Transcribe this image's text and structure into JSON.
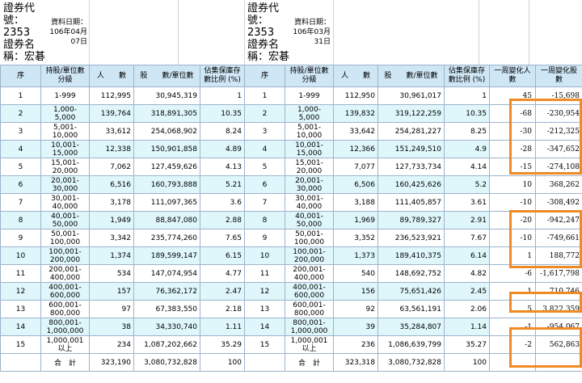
{
  "left_header": {
    "code_label_1": "證券代",
    "code_label_2": "號：",
    "code_value": "2353",
    "name_label_1": "證券名",
    "name_label_2": "稱：宏碁",
    "date_label": "資料日期：",
    "date_line1": "106年04月",
    "date_line2": "07日"
  },
  "right_header": {
    "code_label_1": "證券代",
    "code_label_2": "號：",
    "code_value": "2353",
    "name_label_1": "證券名",
    "name_label_2": "稱：宏碁",
    "date_label": "資料日期：",
    "date_line1": "106年03月",
    "date_line2": "31日"
  },
  "columns": {
    "seq": "序",
    "level": "持股/單位數分級",
    "people": "人　　數",
    "shares": "股　　數/單位數",
    "pct": "佔集保庫存數比例 (%)",
    "people_change": "一周變化人數",
    "shares_change": "一周變化股數"
  },
  "rows": [
    {
      "seq": "1",
      "level": "1-999",
      "l_people": "112,995",
      "l_shares": "30,945,319",
      "l_pct": "1",
      "r_seq": "1",
      "r_level": "1-999",
      "r_people": "112,950",
      "r_shares": "30,961,017",
      "r_pct": "1",
      "d_people": "45",
      "d_shares": "-15,698"
    },
    {
      "seq": "2",
      "level": "1,000-5,000",
      "l_people": "139,764",
      "l_shares": "318,891,305",
      "l_pct": "10.35",
      "r_seq": "2",
      "r_level": "1,000-5,000",
      "r_people": "139,832",
      "r_shares": "319,122,259",
      "r_pct": "10.35",
      "d_people": "-68",
      "d_shares": "-230,954"
    },
    {
      "seq": "3",
      "level": "5,001-10,000",
      "l_people": "33,612",
      "l_shares": "254,068,902",
      "l_pct": "8.24",
      "r_seq": "3",
      "r_level": "5,001-10,000",
      "r_people": "33,642",
      "r_shares": "254,281,227",
      "r_pct": "8.25",
      "d_people": "-30",
      "d_shares": "-212,325"
    },
    {
      "seq": "4",
      "level": "10,001-15,000",
      "l_people": "12,338",
      "l_shares": "150,901,858",
      "l_pct": "4.89",
      "r_seq": "4",
      "r_level": "10,001-15,000",
      "r_people": "12,366",
      "r_shares": "151,249,510",
      "r_pct": "4.9",
      "d_people": "-28",
      "d_shares": "-347,652"
    },
    {
      "seq": "5",
      "level": "15,001-20,000",
      "l_people": "7,062",
      "l_shares": "127,459,626",
      "l_pct": "4.13",
      "r_seq": "5",
      "r_level": "15,001-20,000",
      "r_people": "7,077",
      "r_shares": "127,733,734",
      "r_pct": "4.14",
      "d_people": "-15",
      "d_shares": "-274,108"
    },
    {
      "seq": "6",
      "level": "20,001-30,000",
      "l_people": "6,516",
      "l_shares": "160,793,888",
      "l_pct": "5.21",
      "r_seq": "6",
      "r_level": "20,001-30,000",
      "r_people": "6,506",
      "r_shares": "160,425,626",
      "r_pct": "5.2",
      "d_people": "10",
      "d_shares": "368,262"
    },
    {
      "seq": "7",
      "level": "30,001-40,000",
      "l_people": "3,178",
      "l_shares": "111,097,365",
      "l_pct": "3.6",
      "r_seq": "7",
      "r_level": "30,001-40,000",
      "r_people": "3,188",
      "r_shares": "111,405,857",
      "r_pct": "3.61",
      "d_people": "-10",
      "d_shares": "-308,492"
    },
    {
      "seq": "8",
      "level": "40,001-50,000",
      "l_people": "1,949",
      "l_shares": "88,847,080",
      "l_pct": "2.88",
      "r_seq": "8",
      "r_level": "40,001-50,000",
      "r_people": "1,969",
      "r_shares": "89,789,327",
      "r_pct": "2.91",
      "d_people": "-20",
      "d_shares": "-942,247"
    },
    {
      "seq": "9",
      "level": "50,001-100,000",
      "l_people": "3,342",
      "l_shares": "235,774,260",
      "l_pct": "7.65",
      "r_seq": "9",
      "r_level": "50,001-100,000",
      "r_people": "3,352",
      "r_shares": "236,523,921",
      "r_pct": "7.67",
      "d_people": "-10",
      "d_shares": "-749,661"
    },
    {
      "seq": "10",
      "level": "100,001-200,000",
      "l_people": "1,374",
      "l_shares": "189,599,147",
      "l_pct": "6.15",
      "r_seq": "10",
      "r_level": "100,001-200,000",
      "r_people": "1,373",
      "r_shares": "189,410,375",
      "r_pct": "6.14",
      "d_people": "1",
      "d_shares": "188,772"
    },
    {
      "seq": "11",
      "level": "200,001-400,000",
      "l_people": "534",
      "l_shares": "147,074,954",
      "l_pct": "4.77",
      "r_seq": "11",
      "r_level": "200,001-400,000",
      "r_people": "540",
      "r_shares": "148,692,752",
      "r_pct": "4.82",
      "d_people": "-6",
      "d_shares": "-1,617,798"
    },
    {
      "seq": "12",
      "level": "400,001-600,000",
      "l_people": "157",
      "l_shares": "76,362,172",
      "l_pct": "2.47",
      "r_seq": "12",
      "r_level": "400,001-600,000",
      "r_people": "156",
      "r_shares": "75,651,426",
      "r_pct": "2.45",
      "d_people": "1",
      "d_shares": "710,746"
    },
    {
      "seq": "13",
      "level": "600,001-800,000",
      "l_people": "97",
      "l_shares": "67,383,550",
      "l_pct": "2.18",
      "r_seq": "13",
      "r_level": "600,001-800,000",
      "r_people": "92",
      "r_shares": "63,561,191",
      "r_pct": "2.06",
      "d_people": "5",
      "d_shares": "3,822,359"
    },
    {
      "seq": "14",
      "level": "800,001-1,000,000",
      "l_people": "38",
      "l_shares": "34,330,740",
      "l_pct": "1.11",
      "r_seq": "14",
      "r_level": "800,001-1,000,000",
      "r_people": "39",
      "r_shares": "35,284,807",
      "r_pct": "1.14",
      "d_people": "-1",
      "d_shares": "-954,067"
    },
    {
      "seq": "15",
      "level": "1,000,001以上",
      "l_people": "234",
      "l_shares": "1,087,202,662",
      "l_pct": "35.29",
      "r_seq": "15",
      "r_level": "1,000,001以上",
      "r_people": "236",
      "r_shares": "1,086,639,799",
      "r_pct": "35.27",
      "d_people": "-2",
      "d_shares": "562,863"
    }
  ],
  "total": {
    "label": "合　計",
    "l_people": "323,190",
    "l_shares": "3,080,732,828",
    "l_pct": "100",
    "r_label": "合　計",
    "r_people": "323,318",
    "r_shares": "3,080,732,828",
    "r_pct": "100"
  },
  "colors": {
    "header_bg": "#cfe6f5",
    "stripe_bg": "#dff7fb",
    "highlight_border": "#f08a24"
  }
}
